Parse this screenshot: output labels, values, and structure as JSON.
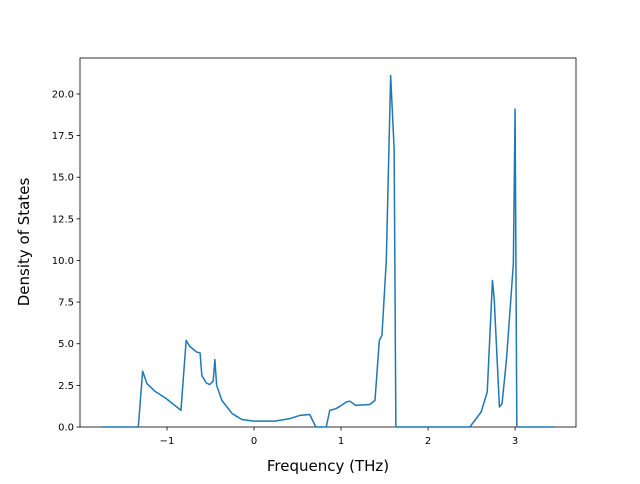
{
  "chart_data": {
    "type": "line",
    "x_label": "Frequency (THz)",
    "y_label": "Density of States",
    "series": [
      {
        "name": null,
        "color": "#1f77b4",
        "x": [
          -1.75,
          -1.33,
          -1.28,
          -1.23,
          -1.14,
          -1.02,
          -0.84,
          -0.78,
          -0.74,
          -0.66,
          -0.62,
          -0.6,
          -0.55,
          -0.51,
          -0.47,
          -0.45,
          -0.43,
          -0.37,
          -0.25,
          -0.14,
          0,
          0.24,
          0.41,
          0.53,
          0.64,
          0.71,
          0.83,
          0.87,
          0.94,
          0.99,
          1.06,
          1.1,
          1.17,
          1.33,
          1.39,
          1.44,
          1.47,
          1.52,
          1.57,
          1.61,
          1.63,
          2.48,
          2.61,
          2.68,
          2.74,
          2.76,
          2.82,
          2.85,
          2.9,
          2.95,
          2.98,
          3.0,
          3.02,
          3.45
        ],
        "values": [
          0,
          0,
          3.35,
          2.6,
          2.15,
          1.75,
          1.0,
          5.2,
          4.85,
          4.5,
          4.45,
          3.1,
          2.65,
          2.55,
          2.75,
          4.05,
          2.5,
          1.6,
          0.8,
          0.45,
          0.35,
          0.35,
          0.5,
          0.7,
          0.75,
          0,
          0,
          1.0,
          1.1,
          1.25,
          1.5,
          1.55,
          1.3,
          1.35,
          1.6,
          5.2,
          5.5,
          10,
          21.1,
          16.7,
          0,
          0,
          0.9,
          2.1,
          8.8,
          7.7,
          1.2,
          1.4,
          4.0,
          7.6,
          9.8,
          19.1,
          0,
          0
        ]
      }
    ],
    "xlim": [
      -2.0,
      3.7
    ],
    "ylim": [
      0,
      22.16
    ],
    "xticks": [
      {
        "value": -1,
        "label": "−1"
      },
      0,
      1,
      2,
      3
    ],
    "yticks": [
      {
        "value": 0,
        "label": "0.0"
      },
      2.5,
      {
        "value": 5,
        "label": "5.0"
      },
      7.5,
      {
        "value": 10,
        "label": "10.0"
      },
      12.5,
      {
        "value": 15,
        "label": "15.0"
      },
      17.5,
      {
        "value": 20,
        "label": "20.0"
      }
    ]
  }
}
